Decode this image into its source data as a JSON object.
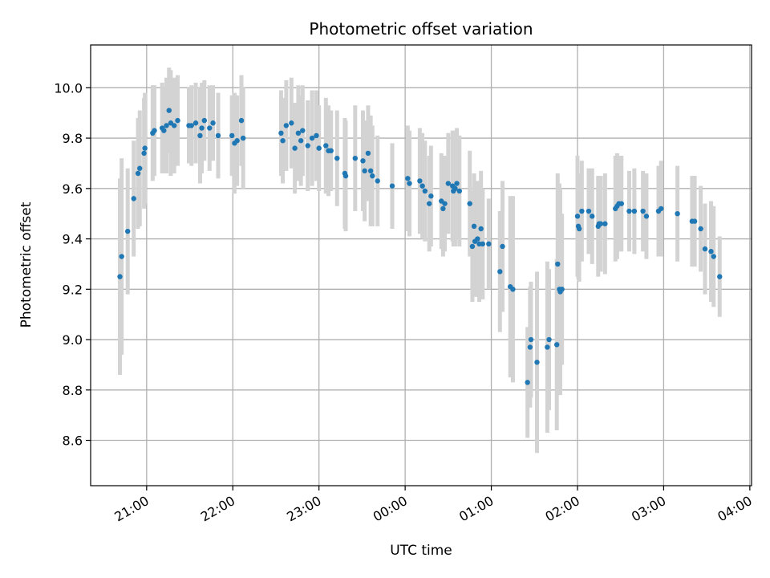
{
  "chart_data": {
    "type": "scatter",
    "title": "Photometric offset variation",
    "xlabel": "UTC time",
    "ylabel": "Photometric offset",
    "x_unit": "hours since 00:00 UTC (negative = previous day)",
    "xlim": [
      -3.65,
      4.02
    ],
    "ylim": [
      8.42,
      10.17
    ],
    "x_ticks": [
      -3,
      -2,
      -1,
      0,
      1,
      2,
      3,
      4
    ],
    "x_tick_labels": [
      "21:00",
      "22:00",
      "23:00",
      "00:00",
      "01:00",
      "02:00",
      "03:00",
      "04:00"
    ],
    "y_ticks": [
      8.6,
      8.8,
      9.0,
      9.2,
      9.4,
      9.6,
      9.8,
      10.0
    ],
    "y_tick_labels": [
      "8.6",
      "8.8",
      "9.0",
      "9.2",
      "9.4",
      "9.6",
      "9.8",
      "10.0"
    ],
    "grid": true,
    "colors": {
      "marker": "#1f77b4",
      "errorbar": "#d3d3d3",
      "grid": "#b0b0b0"
    },
    "series": [
      {
        "points": [
          [
            -3.31,
            9.25,
            0.39
          ],
          [
            -3.29,
            9.33,
            0.39
          ],
          [
            -3.22,
            9.43,
            0.25
          ],
          [
            -3.15,
            9.56,
            0.23
          ],
          [
            -3.1,
            9.66,
            0.22
          ],
          [
            -3.08,
            9.68,
            0.23
          ],
          [
            -3.03,
            9.74,
            0.22
          ],
          [
            -3.02,
            9.76,
            0.22
          ],
          [
            -2.93,
            9.82,
            0.19
          ],
          [
            -2.91,
            9.83,
            0.18
          ],
          [
            -2.82,
            9.84,
            0.18
          ],
          [
            -2.8,
            9.83,
            0.17
          ],
          [
            -2.77,
            9.85,
            0.19
          ],
          [
            -2.74,
            9.91,
            0.17
          ],
          [
            -2.72,
            9.86,
            0.21
          ],
          [
            -2.68,
            9.85,
            0.19
          ],
          [
            -2.64,
            9.87,
            0.18
          ],
          [
            -2.51,
            9.85,
            0.15
          ],
          [
            -2.48,
            9.85,
            0.16
          ],
          [
            -2.43,
            9.86,
            0.16
          ],
          [
            -2.38,
            9.81,
            0.19
          ],
          [
            -2.36,
            9.84,
            0.18
          ],
          [
            -2.33,
            9.87,
            0.16
          ],
          [
            -2.27,
            9.84,
            0.17
          ],
          [
            -2.23,
            9.86,
            0.15
          ],
          [
            -2.17,
            9.81,
            0.17
          ],
          [
            -2.01,
            9.81,
            0.16
          ],
          [
            -1.98,
            9.78,
            0.2
          ],
          [
            -1.95,
            9.79,
            0.18
          ],
          [
            -1.9,
            9.87,
            0.18
          ],
          [
            -1.88,
            9.8,
            0.2
          ],
          [
            -1.44,
            9.82,
            0.17
          ],
          [
            -1.42,
            9.79,
            0.17
          ],
          [
            -1.38,
            9.85,
            0.18
          ],
          [
            -1.32,
            9.86,
            0.18
          ],
          [
            -1.28,
            9.76,
            0.18
          ],
          [
            -1.24,
            9.82,
            0.19
          ],
          [
            -1.21,
            9.79,
            0.18
          ],
          [
            -1.19,
            9.83,
            0.18
          ],
          [
            -1.13,
            9.77,
            0.18
          ],
          [
            -1.08,
            9.8,
            0.19
          ],
          [
            -1.03,
            9.81,
            0.18
          ],
          [
            -1.0,
            9.76,
            0.17
          ],
          [
            -0.92,
            9.77,
            0.19
          ],
          [
            -0.89,
            9.75,
            0.18
          ],
          [
            -0.86,
            9.75,
            0.16
          ],
          [
            -0.79,
            9.72,
            0.19
          ],
          [
            -0.7,
            9.66,
            0.22
          ],
          [
            -0.69,
            9.65,
            0.22
          ],
          [
            -0.58,
            9.72,
            0.21
          ],
          [
            -0.49,
            9.71,
            0.2
          ],
          [
            -0.47,
            9.67,
            0.2
          ],
          [
            -0.43,
            9.74,
            0.19
          ],
          [
            -0.4,
            9.67,
            0.22
          ],
          [
            -0.38,
            9.65,
            0.2
          ],
          [
            -0.32,
            9.63,
            0.18
          ],
          [
            -0.15,
            9.61,
            0.17
          ],
          [
            0.03,
            9.64,
            0.21
          ],
          [
            0.05,
            9.62,
            0.21
          ],
          [
            0.17,
            9.63,
            0.21
          ],
          [
            0.2,
            9.61,
            0.21
          ],
          [
            0.23,
            9.59,
            0.2
          ],
          [
            0.28,
            9.54,
            0.19
          ],
          [
            0.3,
            9.57,
            0.2
          ],
          [
            0.42,
            9.55,
            0.19
          ],
          [
            0.44,
            9.52,
            0.19
          ],
          [
            0.46,
            9.54,
            0.19
          ],
          [
            0.5,
            9.62,
            0.2
          ],
          [
            0.55,
            9.61,
            0.22
          ],
          [
            0.56,
            9.59,
            0.22
          ],
          [
            0.58,
            9.6,
            0.23
          ],
          [
            0.6,
            9.62,
            0.22
          ],
          [
            0.63,
            9.59,
            0.22
          ],
          [
            0.75,
            9.54,
            0.21
          ],
          [
            0.78,
            9.37,
            0.22
          ],
          [
            0.8,
            9.45,
            0.21
          ],
          [
            0.81,
            9.39,
            0.22
          ],
          [
            0.84,
            9.4,
            0.23
          ],
          [
            0.86,
            9.38,
            0.23
          ],
          [
            0.88,
            9.44,
            0.23
          ],
          [
            0.9,
            9.38,
            0.22
          ],
          [
            0.97,
            9.38,
            0.18
          ],
          [
            1.1,
            9.27,
            0.24
          ],
          [
            1.13,
            9.37,
            0.26
          ],
          [
            1.22,
            9.21,
            0.36
          ],
          [
            1.25,
            9.2,
            0.37
          ],
          [
            1.42,
            8.83,
            0.22
          ],
          [
            1.45,
            8.97,
            0.24
          ],
          [
            1.46,
            9.0,
            0.23
          ],
          [
            1.53,
            8.91,
            0.36
          ],
          [
            1.65,
            8.97,
            0.34
          ],
          [
            1.67,
            9.0,
            0.28
          ],
          [
            1.76,
            8.98,
            0.34
          ],
          [
            1.77,
            9.3,
            0.36
          ],
          [
            1.79,
            9.2,
            0.42
          ],
          [
            1.8,
            9.19,
            0.41
          ],
          [
            1.82,
            9.2,
            0.3
          ],
          [
            2.0,
            9.49,
            0.24
          ],
          [
            2.01,
            9.45,
            0.21
          ],
          [
            2.02,
            9.44,
            0.21
          ],
          [
            2.05,
            9.51,
            0.2
          ],
          [
            2.13,
            9.51,
            0.17
          ],
          [
            2.17,
            9.49,
            0.19
          ],
          [
            2.24,
            9.45,
            0.2
          ],
          [
            2.25,
            9.46,
            0.19
          ],
          [
            2.27,
            9.46,
            0.19
          ],
          [
            2.32,
            9.46,
            0.2
          ],
          [
            2.44,
            9.52,
            0.21
          ],
          [
            2.46,
            9.53,
            0.21
          ],
          [
            2.48,
            9.54,
            0.19
          ],
          [
            2.51,
            9.54,
            0.19
          ],
          [
            2.6,
            9.51,
            0.16
          ],
          [
            2.66,
            9.51,
            0.17
          ],
          [
            2.76,
            9.51,
            0.16
          ],
          [
            2.8,
            9.49,
            0.17
          ],
          [
            2.94,
            9.51,
            0.18
          ],
          [
            2.97,
            9.52,
            0.19
          ],
          [
            3.16,
            9.5,
            0.19
          ],
          [
            3.33,
            9.47,
            0.18
          ],
          [
            3.36,
            9.47,
            0.18
          ],
          [
            3.43,
            9.44,
            0.17
          ],
          [
            3.48,
            9.36,
            0.18
          ],
          [
            3.55,
            9.35,
            0.2
          ],
          [
            3.58,
            9.33,
            0.2
          ],
          [
            3.65,
            9.25,
            0.16
          ]
        ]
      }
    ]
  }
}
